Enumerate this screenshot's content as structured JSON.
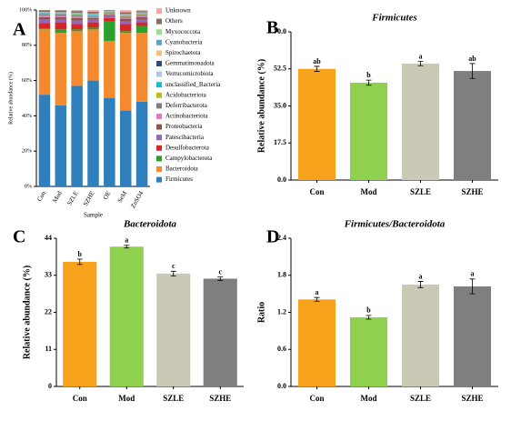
{
  "chart_data": [
    {
      "type": "stacked_bar",
      "panel": "A",
      "ylabel": "Relative abundance (%)",
      "xlabel": "Sample",
      "categories": [
        "Con",
        "Mod",
        "SZLE",
        "SZHE",
        "OE",
        "SeM",
        "ZnSO4"
      ],
      "ylim": [
        0,
        100
      ],
      "yticks": [
        {
          "value": 0,
          "label": "0%"
        },
        {
          "value": 20,
          "label": "20%"
        },
        {
          "value": 40,
          "label": "40%"
        },
        {
          "value": 60,
          "label": "60%"
        },
        {
          "value": 80,
          "label": "80%"
        },
        {
          "value": 100,
          "label": "100%"
        }
      ],
      "series": [
        {
          "name": "Firmicutes",
          "color": "#2f7fbd",
          "values": [
            52,
            46,
            57,
            60,
            50,
            43,
            48
          ]
        },
        {
          "name": "Bacteroidota",
          "color": "#f5892d",
          "values": [
            37,
            41,
            31,
            29,
            32.5,
            44,
            39
          ]
        },
        {
          "name": "Campylobacterota",
          "color": "#2ca02c",
          "values": [
            0.5,
            2,
            1,
            1,
            11,
            1,
            4
          ]
        },
        {
          "name": "Desulfobacterota",
          "color": "#d62728",
          "values": [
            3,
            4,
            3,
            3,
            2,
            4,
            2
          ]
        },
        {
          "name": "Patescibacteria",
          "color": "#9467bd",
          "values": [
            2,
            1.5,
            2,
            1.5,
            1,
            1.5,
            1.5
          ]
        },
        {
          "name": "Proteobacteria",
          "color": "#8c564b",
          "values": [
            1.5,
            1.5,
            1.5,
            1,
            0.8,
            1.5,
            1.5
          ]
        },
        {
          "name": "Actinobacteriota",
          "color": "#e377c2",
          "values": [
            0.8,
            0.6,
            0.8,
            0.5,
            0.5,
            0.6,
            0.6
          ]
        },
        {
          "name": "Deferribacterota",
          "color": "#7f7f7f",
          "values": [
            0.6,
            0.8,
            0.6,
            0.6,
            0.4,
            0.6,
            0.6
          ]
        },
        {
          "name": "Acidobacteriota",
          "color": "#bcbd22",
          "values": [
            0.3,
            0.3,
            0.3,
            0.3,
            0.2,
            0.3,
            0.3
          ]
        },
        {
          "name": "unclassified_Bacteria",
          "color": "#17becf",
          "values": [
            0.5,
            0.4,
            0.5,
            0.4,
            0.3,
            0.5,
            0.4
          ]
        },
        {
          "name": "Verrucomicrobiota",
          "color": "#aec7e8",
          "values": [
            0.2,
            0.2,
            0.2,
            0.2,
            0.2,
            0.2,
            0.2
          ]
        },
        {
          "name": "Gemmatimonadota",
          "color": "#2b4f7e",
          "values": [
            0.1,
            0.1,
            0.1,
            0.1,
            0.1,
            0.1,
            0.1
          ]
        },
        {
          "name": "Spirochaetota",
          "color": "#ffbb78",
          "values": [
            0.1,
            0.1,
            0.1,
            0.1,
            0.1,
            0.1,
            0.1
          ]
        },
        {
          "name": "Cyanobacteria",
          "color": "#5fa3c6",
          "values": [
            0.2,
            0.2,
            0.2,
            0.2,
            0.2,
            0.2,
            0.2
          ]
        },
        {
          "name": "Myxococcota",
          "color": "#98df8a",
          "values": [
            0.1,
            0.1,
            0.1,
            0.1,
            0.1,
            0.1,
            0.1
          ]
        },
        {
          "name": "Others",
          "color": "#8c6d5a",
          "values": [
            1,
            1,
            1,
            1,
            0.5,
            1,
            0.8
          ]
        },
        {
          "name": "Unknown",
          "color": "#f7a8a0",
          "values": [
            0.1,
            0.2,
            0.6,
            1,
            0.1,
            1.2,
            0.6
          ]
        }
      ]
    },
    {
      "type": "bar",
      "panel": "B",
      "title": "Firmicutes",
      "ylabel": "Relative abundance (%)",
      "categories": [
        "Con",
        "Mod",
        "SZLE",
        "SZHE"
      ],
      "colors": [
        "#f7a21b",
        "#8fd14f",
        "#c9c9b6",
        "#7f7f7f"
      ],
      "values": [
        52.5,
        46,
        55,
        51.5
      ],
      "errors": [
        1.2,
        1.2,
        1,
        3.5
      ],
      "letters": [
        "ab",
        "b",
        "a",
        "ab"
      ],
      "ylim": [
        0,
        70
      ],
      "yticks": [
        {
          "value": 0,
          "label": "0.0"
        },
        17.5,
        {
          "value": 35,
          "label": "35.0"
        },
        52.5,
        {
          "value": 70,
          "label": "70.0"
        }
      ]
    },
    {
      "type": "bar",
      "panel": "C",
      "title": "Bacteroidota",
      "ylabel": "Relative abundance (%)",
      "categories": [
        "Con",
        "Mod",
        "SZLE",
        "SZHE"
      ],
      "colors": [
        "#f7a21b",
        "#8fd14f",
        "#c9c9b6",
        "#7f7f7f"
      ],
      "values": [
        37,
        41.5,
        33.5,
        32
      ],
      "errors": [
        0.8,
        0.4,
        0.7,
        0.5
      ],
      "letters": [
        "b",
        "a",
        "c",
        "c"
      ],
      "ylim": [
        0,
        44
      ],
      "yticks": [
        0,
        11,
        22,
        33,
        44
      ]
    },
    {
      "type": "bar",
      "panel": "D",
      "title": "Firmicutes/Bacteroidota",
      "ylabel": "Ratio",
      "categories": [
        "Con",
        "Mod",
        "SZLE",
        "SZHE"
      ],
      "colors": [
        "#f7a21b",
        "#8fd14f",
        "#c9c9b6",
        "#7f7f7f"
      ],
      "values": [
        1.41,
        1.12,
        1.65,
        1.62
      ],
      "errors": [
        0.03,
        0.03,
        0.05,
        0.12
      ],
      "letters": [
        "a",
        "b",
        "a",
        "a"
      ],
      "ylim": [
        0,
        2.4
      ],
      "yticks": [
        {
          "value": 0,
          "label": "0.0"
        },
        0.6,
        1.2,
        1.8,
        2.4
      ]
    }
  ]
}
